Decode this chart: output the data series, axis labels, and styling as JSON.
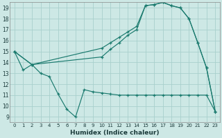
{
  "xlabel": "Humidex (Indice chaleur)",
  "background_color": "#cde8e5",
  "grid_color": "#a8d0cc",
  "line_color": "#1a7a6e",
  "xlim": [
    -0.5,
    23.5
  ],
  "ylim": [
    8.5,
    19.5
  ],
  "xticks": [
    0,
    1,
    2,
    3,
    4,
    5,
    6,
    7,
    8,
    9,
    10,
    11,
    12,
    13,
    14,
    15,
    16,
    17,
    18,
    19,
    20,
    21,
    22,
    23
  ],
  "yticks": [
    9,
    10,
    11,
    12,
    13,
    14,
    15,
    16,
    17,
    18,
    19
  ],
  "lines": [
    {
      "x": [
        0,
        1,
        2,
        3,
        4,
        5,
        6,
        7,
        8,
        9,
        10,
        11,
        12,
        13,
        14,
        15,
        16,
        17,
        18,
        19,
        20,
        21,
        22,
        23
      ],
      "y": [
        15.0,
        13.3,
        13.8,
        13.0,
        12.7,
        11.1,
        9.7,
        9.0,
        11.5,
        11.3,
        11.2,
        11.1,
        11.0,
        11.0,
        11.0,
        11.0,
        11.0,
        11.0,
        11.0,
        11.0,
        11.0,
        11.0,
        11.0,
        9.5
      ]
    },
    {
      "x": [
        0,
        2,
        10,
        11,
        12,
        13,
        14,
        15,
        16,
        17,
        18,
        19,
        20,
        21,
        22,
        23
      ],
      "y": [
        15.0,
        13.8,
        15.3,
        15.8,
        16.3,
        16.8,
        17.3,
        19.2,
        19.3,
        19.5,
        19.2,
        19.0,
        18.0,
        15.8,
        13.5,
        9.5
      ]
    },
    {
      "x": [
        0,
        2,
        10,
        11,
        12,
        13,
        14,
        15,
        16,
        17,
        18,
        19,
        20,
        21,
        22,
        23
      ],
      "y": [
        15.0,
        13.8,
        14.5,
        15.2,
        15.8,
        16.5,
        17.0,
        19.2,
        19.3,
        19.5,
        19.2,
        19.0,
        18.0,
        15.8,
        13.5,
        9.5
      ]
    }
  ]
}
